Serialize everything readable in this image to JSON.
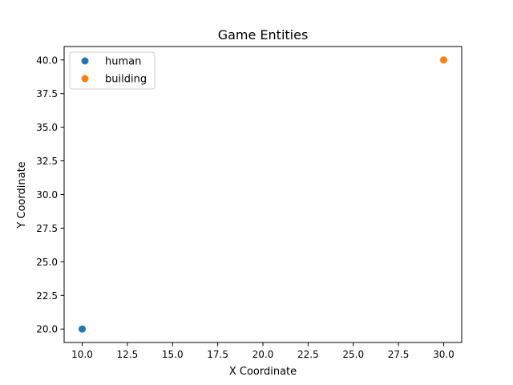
{
  "chart_data": {
    "type": "scatter",
    "title": "Game Entities",
    "xlabel": "X Coordinate",
    "ylabel": "Y Coordinate",
    "xlim": [
      9.0,
      31.0
    ],
    "ylim": [
      19.0,
      41.0
    ],
    "xticks": [
      10.0,
      12.5,
      15.0,
      17.5,
      20.0,
      22.5,
      25.0,
      27.5,
      30.0
    ],
    "yticks": [
      20.0,
      22.5,
      25.0,
      27.5,
      30.0,
      32.5,
      35.0,
      37.5,
      40.0
    ],
    "grid": false,
    "legend_position": "top-left",
    "series": [
      {
        "name": "human",
        "color": "#1f77b4",
        "points": [
          {
            "x": 10,
            "y": 20
          }
        ]
      },
      {
        "name": "building",
        "color": "#ff7f0e",
        "points": [
          {
            "x": 30,
            "y": 40
          }
        ]
      }
    ]
  }
}
